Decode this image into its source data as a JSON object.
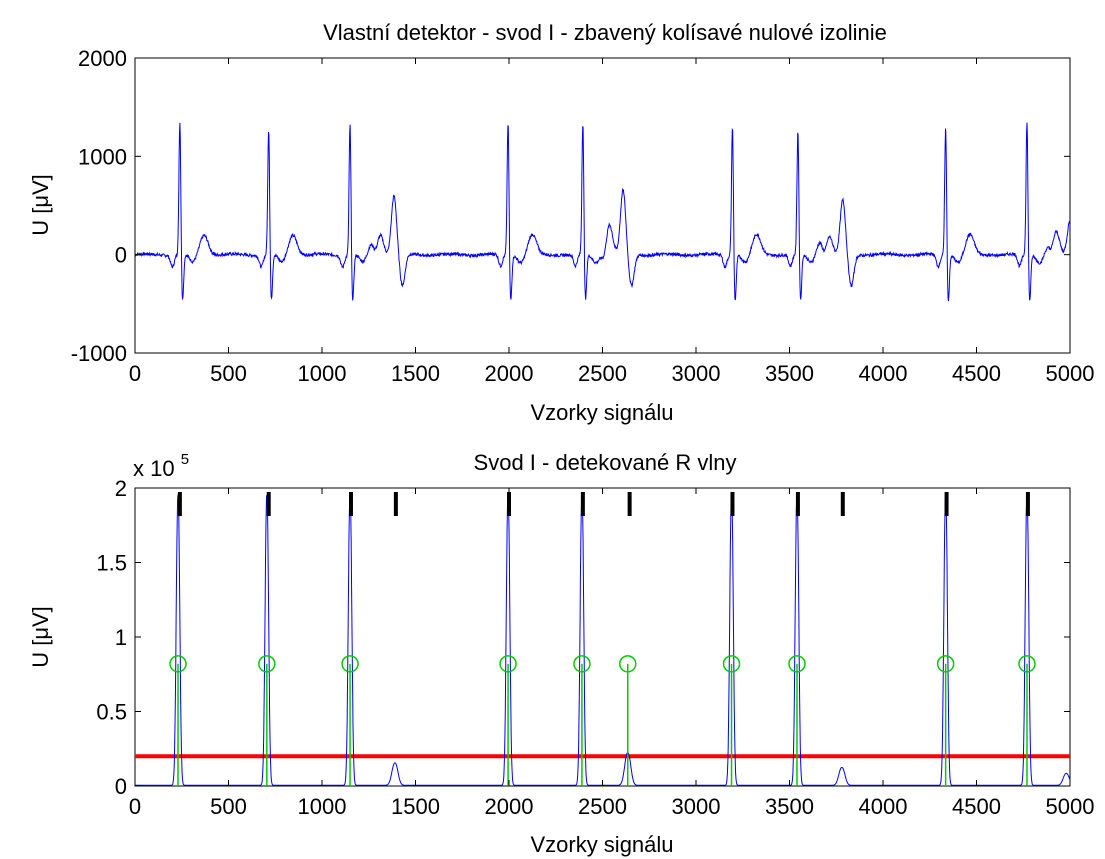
{
  "chart_data": [
    {
      "type": "line",
      "title": "Vlastní detektor - svod I - zbavený kolísavé nulové izolinie",
      "xlabel": "Vzorky signálu",
      "ylabel": "U [μV]",
      "xlim": [
        0,
        5000
      ],
      "ylim": [
        -1000,
        2000
      ],
      "xticks": [
        0,
        500,
        1000,
        1500,
        2000,
        2500,
        3000,
        3500,
        4000,
        4500,
        5000
      ],
      "yticks": [
        -1000,
        0,
        1000,
        2000
      ],
      "grid": false,
      "colors": {
        "signal": "#0000ff"
      },
      "series": [
        {
          "peak_positions": [
            240,
            715,
            1150,
            1995,
            2395,
            3195,
            3545,
            4335,
            4770
          ],
          "peak_heights": [
            1370,
            1300,
            1350,
            1370,
            1360,
            1340,
            1280,
            1330,
            1370
          ],
          "wide_beats": [
            {
              "x": 1385,
              "top": 650
            },
            {
              "x": 2610,
              "top": 700
            },
            {
              "x": 3785,
              "top": 600
            },
            {
              "x": 5000,
              "top": 400
            }
          ]
        }
      ]
    },
    {
      "type": "line",
      "title": "Svod I - detekované R vlny",
      "xlabel": "Vzorky signálu",
      "ylabel": "U [μV]",
      "exponent_label": "x 10",
      "exponent_power": "5",
      "xlim": [
        0,
        5000
      ],
      "ylim": [
        0,
        2
      ],
      "xticks": [
        0,
        500,
        1000,
        1500,
        2000,
        2500,
        3000,
        3500,
        4000,
        4500,
        5000
      ],
      "yticks": [
        0,
        0.5,
        1,
        1.5,
        2
      ],
      "ytick_labels": [
        "0",
        "0.5",
        "1",
        "1.5",
        "2"
      ],
      "grid": false,
      "colors": {
        "envelope": "#0000ff",
        "threshold": "#ff0000",
        "stem": "#00cc00",
        "marker": "#000000"
      },
      "threshold": 0.2,
      "envelope_peaks": [
        {
          "x": 230,
          "h": 1.95
        },
        {
          "x": 705,
          "h": 1.95
        },
        {
          "x": 1150,
          "h": 1.95
        },
        {
          "x": 1390,
          "h": 0.15
        },
        {
          "x": 1995,
          "h": 1.95
        },
        {
          "x": 2390,
          "h": 1.95
        },
        {
          "x": 2635,
          "h": 0.22
        },
        {
          "x": 3190,
          "h": 1.95
        },
        {
          "x": 3540,
          "h": 1.95
        },
        {
          "x": 3780,
          "h": 0.12
        },
        {
          "x": 4335,
          "h": 1.95
        },
        {
          "x": 4770,
          "h": 1.95
        },
        {
          "x": 4980,
          "h": 0.08
        }
      ],
      "detections": [
        230,
        705,
        1150,
        1995,
        2390,
        2635,
        3190,
        3540,
        4335,
        4770
      ],
      "detection_level": 0.82,
      "top_markers": [
        240,
        715,
        1155,
        1395,
        2000,
        2395,
        2645,
        3195,
        3545,
        3785,
        4340,
        4775
      ]
    }
  ]
}
